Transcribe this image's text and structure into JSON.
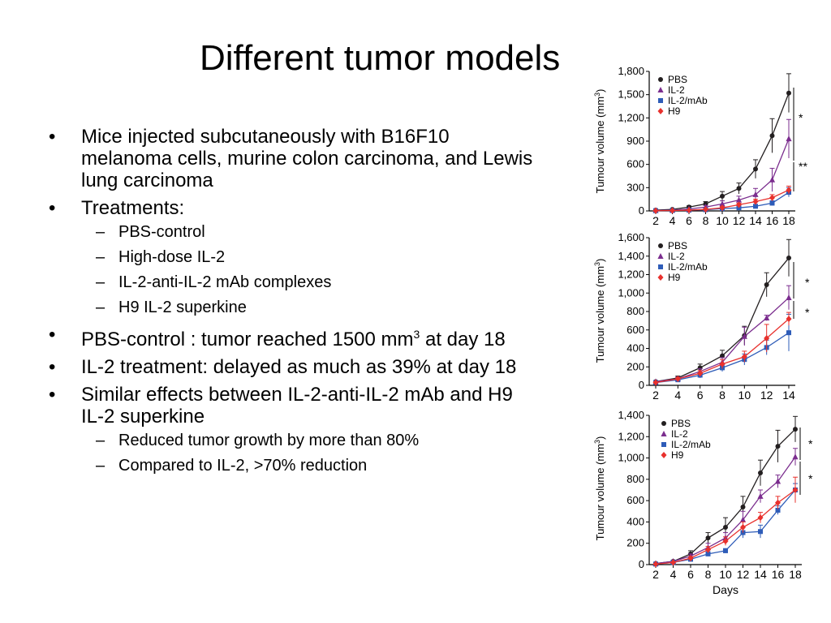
{
  "slide": {
    "title": "Different tumor models",
    "bullets": [
      {
        "text": "Mice injected subcutaneously with B16F10 melanoma cells, murine colon carcinoma, and Lewis lung carcinoma",
        "sub": []
      },
      {
        "text": "Treatments:",
        "sub": [
          "PBS-control",
          "High-dose IL-2",
          "IL-2-anti-IL-2 mAb complexes",
          "H9 IL-2 superkine"
        ]
      },
      {
        "text_before": "PBS-control : tumor reached 1500 mm",
        "text_sup": "3",
        "text_after": " at day 18",
        "sub": []
      },
      {
        "text": "IL-2 treatment: delayed as much as 39% at day 18",
        "sub": []
      },
      {
        "text": "Similar effects between IL-2-anti-IL-2 mAb and H9 IL-2 superkine",
        "sub": [
          "Reduced tumor growth by more than 80%",
          "Compared to IL-2, >70% reduction"
        ]
      }
    ],
    "bullet_mark": "•",
    "sub_mark": "–"
  },
  "chart_data": [
    {
      "type": "line",
      "ylabel": "Tumour volume (mm3)",
      "xlabel": "",
      "ylim": [
        0,
        1800
      ],
      "yticks": [
        0,
        300,
        600,
        900,
        1200,
        1500,
        1800
      ],
      "ytick_labels": [
        "0",
        "300",
        "600",
        "900",
        "1,200",
        "1,500",
        "1,800"
      ],
      "xlim": [
        2,
        18
      ],
      "xticks": [
        2,
        4,
        6,
        8,
        10,
        12,
        14,
        16,
        18
      ],
      "legend": [
        "PBS",
        "IL-2",
        "IL-2/mAb",
        "H9"
      ],
      "legend_position": "top-left",
      "annotations": [
        "*",
        "**"
      ],
      "series": [
        {
          "name": "PBS",
          "color": "#231f20",
          "marker": "circle",
          "x": [
            2,
            4,
            6,
            8,
            10,
            12,
            14,
            16,
            18
          ],
          "y": [
            10,
            20,
            50,
            90,
            190,
            290,
            540,
            970,
            1520
          ],
          "err": [
            5,
            10,
            15,
            30,
            60,
            70,
            120,
            220,
            250
          ]
        },
        {
          "name": "IL-2",
          "color": "#7b2d8e",
          "marker": "triangle",
          "x": [
            2,
            4,
            6,
            8,
            10,
            12,
            14,
            16,
            18
          ],
          "y": [
            5,
            10,
            25,
            50,
            90,
            140,
            210,
            400,
            930
          ],
          "err": [
            3,
            5,
            10,
            20,
            40,
            50,
            80,
            150,
            250
          ]
        },
        {
          "name": "IL-2/mAb",
          "color": "#2e5cb8",
          "marker": "square",
          "x": [
            2,
            4,
            6,
            8,
            10,
            12,
            14,
            16,
            18
          ],
          "y": [
            3,
            5,
            10,
            15,
            30,
            40,
            60,
            100,
            240
          ],
          "err": [
            2,
            3,
            5,
            5,
            10,
            15,
            20,
            30,
            60
          ]
        },
        {
          "name": "H9",
          "color": "#e8312d",
          "marker": "diamond",
          "x": [
            2,
            4,
            6,
            8,
            10,
            12,
            14,
            16,
            18
          ],
          "y": [
            3,
            5,
            10,
            20,
            40,
            80,
            120,
            170,
            270
          ],
          "err": [
            2,
            3,
            5,
            8,
            15,
            20,
            30,
            40,
            50
          ]
        }
      ]
    },
    {
      "type": "line",
      "ylabel": "Tumour volume (mm3)",
      "xlabel": "",
      "ylim": [
        0,
        1600
      ],
      "yticks": [
        0,
        200,
        400,
        600,
        800,
        1000,
        1200,
        1400,
        1600
      ],
      "ytick_labels": [
        "0",
        "200",
        "400",
        "600",
        "800",
        "1,000",
        "1,200",
        "1,400",
        "1,600"
      ],
      "xlim": [
        2,
        14
      ],
      "xticks": [
        2,
        4,
        6,
        8,
        10,
        12,
        14
      ],
      "legend": [
        "PBS",
        "IL-2",
        "IL-2/mAb",
        "H9"
      ],
      "legend_position": "top-left",
      "annotations": [
        "*",
        "*"
      ],
      "series": [
        {
          "name": "PBS",
          "color": "#231f20",
          "marker": "circle",
          "x": [
            2,
            4,
            6,
            8,
            10,
            12,
            14
          ],
          "y": [
            40,
            80,
            190,
            320,
            540,
            1090,
            1380
          ],
          "err": [
            10,
            20,
            40,
            60,
            100,
            130,
            200
          ]
        },
        {
          "name": "IL-2",
          "color": "#7b2d8e",
          "marker": "triangle",
          "x": [
            2,
            4,
            6,
            8,
            10,
            12,
            14
          ],
          "y": [
            40,
            70,
            150,
            250,
            530,
            730,
            950
          ],
          "err": [
            10,
            20,
            30,
            50,
            100,
            30,
            130
          ]
        },
        {
          "name": "IL-2/mAb",
          "color": "#2e5cb8",
          "marker": "square",
          "x": [
            2,
            4,
            6,
            8,
            10,
            12,
            14
          ],
          "y": [
            30,
            60,
            110,
            190,
            280,
            410,
            570
          ],
          "err": [
            10,
            15,
            30,
            40,
            60,
            80,
            200
          ]
        },
        {
          "name": "H9",
          "color": "#e8312d",
          "marker": "diamond",
          "x": [
            2,
            4,
            6,
            8,
            10,
            12,
            14
          ],
          "y": [
            30,
            70,
            130,
            230,
            310,
            510,
            720
          ],
          "err": [
            10,
            15,
            30,
            50,
            60,
            150,
            70
          ]
        }
      ]
    },
    {
      "type": "line",
      "ylabel": "Tumour volume (mm3)",
      "xlabel": "Days",
      "ylim": [
        0,
        1400
      ],
      "yticks": [
        0,
        200,
        400,
        600,
        800,
        1000,
        1200,
        1400
      ],
      "ytick_labels": [
        "0",
        "200",
        "400",
        "600",
        "800",
        "1,000",
        "1,200",
        "1,400"
      ],
      "xlim": [
        2,
        18
      ],
      "xticks": [
        2,
        4,
        6,
        8,
        10,
        12,
        14,
        16,
        18
      ],
      "legend": [
        "PBS",
        "IL-2",
        "IL-2/mAb",
        "H9"
      ],
      "legend_position": "top-left",
      "annotations": [
        "*",
        "*"
      ],
      "series": [
        {
          "name": "PBS",
          "color": "#231f20",
          "marker": "circle",
          "x": [
            2,
            4,
            6,
            8,
            10,
            12,
            14,
            16,
            18
          ],
          "y": [
            10,
            30,
            100,
            250,
            350,
            540,
            860,
            1110,
            1270
          ],
          "err": [
            5,
            10,
            30,
            50,
            90,
            100,
            120,
            150,
            120
          ]
        },
        {
          "name": "IL-2",
          "color": "#7b2d8e",
          "marker": "triangle",
          "x": [
            2,
            4,
            6,
            8,
            10,
            12,
            14,
            16,
            18
          ],
          "y": [
            10,
            30,
            80,
            160,
            250,
            420,
            640,
            780,
            1010
          ],
          "err": [
            5,
            10,
            20,
            40,
            50,
            80,
            60,
            60,
            80
          ]
        },
        {
          "name": "IL-2/mAb",
          "color": "#2e5cb8",
          "marker": "square",
          "x": [
            2,
            4,
            6,
            8,
            10,
            12,
            14,
            16,
            18
          ],
          "y": [
            5,
            20,
            50,
            100,
            130,
            300,
            310,
            510,
            700
          ],
          "err": [
            3,
            5,
            10,
            20,
            20,
            50,
            60,
            40,
            60
          ]
        },
        {
          "name": "H9",
          "color": "#e8312d",
          "marker": "diamond",
          "x": [
            2,
            4,
            6,
            8,
            10,
            12,
            14,
            16,
            18
          ],
          "y": [
            5,
            20,
            60,
            140,
            220,
            350,
            440,
            580,
            700
          ],
          "err": [
            3,
            5,
            15,
            30,
            40,
            50,
            50,
            60,
            120
          ]
        }
      ]
    }
  ]
}
